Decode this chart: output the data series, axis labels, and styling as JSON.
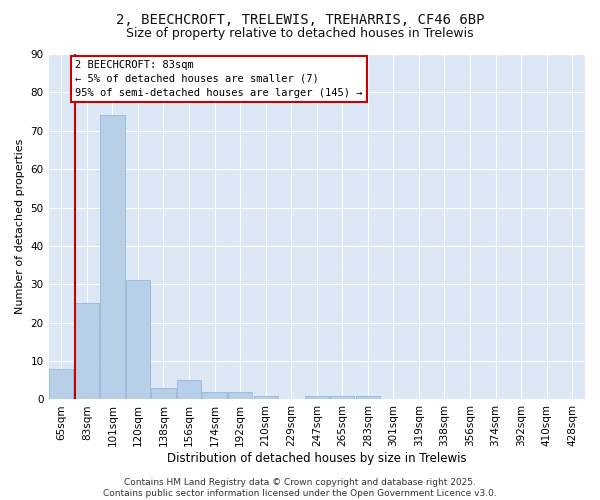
{
  "title1": "2, BEECHCROFT, TRELEWIS, TREHARRIS, CF46 6BP",
  "title2": "Size of property relative to detached houses in Trelewis",
  "xlabel": "Distribution of detached houses by size in Trelewis",
  "ylabel": "Number of detached properties",
  "categories": [
    "65sqm",
    "83sqm",
    "101sqm",
    "120sqm",
    "138sqm",
    "156sqm",
    "174sqm",
    "192sqm",
    "210sqm",
    "229sqm",
    "247sqm",
    "265sqm",
    "283sqm",
    "301sqm",
    "319sqm",
    "338sqm",
    "356sqm",
    "374sqm",
    "392sqm",
    "410sqm",
    "428sqm"
  ],
  "values": [
    8,
    25,
    74,
    31,
    3,
    5,
    2,
    2,
    1,
    0,
    1,
    1,
    1,
    0,
    0,
    0,
    0,
    0,
    0,
    0,
    0
  ],
  "bar_color": "#b8cfe8",
  "bar_edge_color": "#8ab0d8",
  "highlight_bar_index": 1,
  "highlight_line_color": "#cc0000",
  "background_color": "#dce8f5",
  "grid_color": "#ffffff",
  "annotation_text": "2 BEECHCROFT: 83sqm\n← 5% of detached houses are smaller (7)\n95% of semi-detached houses are larger (145) →",
  "annotation_box_facecolor": "#ffffff",
  "annotation_box_edgecolor": "#cc0000",
  "ylim": [
    0,
    90
  ],
  "yticks": [
    0,
    10,
    20,
    30,
    40,
    50,
    60,
    70,
    80,
    90
  ],
  "footer_line1": "Contains HM Land Registry data © Crown copyright and database right 2025.",
  "footer_line2": "Contains public sector information licensed under the Open Government Licence v3.0.",
  "title1_fontsize": 10,
  "title2_fontsize": 9,
  "xlabel_fontsize": 8.5,
  "ylabel_fontsize": 8,
  "tick_fontsize": 7.5,
  "annotation_fontsize": 7.5,
  "footer_fontsize": 6.5
}
